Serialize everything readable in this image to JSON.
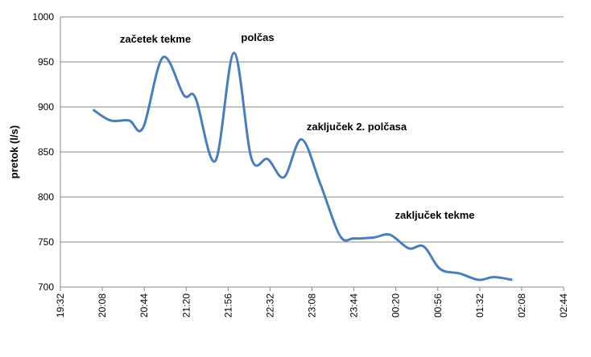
{
  "chart_data": {
    "type": "line",
    "y_label": "pretok  (l/s)",
    "annotations": [
      "začetek tekme",
      "polčas",
      "zaključek 2. polčasa",
      "zaključek tekme"
    ],
    "x": [
      "20:00",
      "20:15",
      "20:31",
      "20:43",
      "21:00",
      "21:18",
      "21:28",
      "21:45",
      "22:01",
      "22:16",
      "22:30",
      "22:44",
      "22:59",
      "23:15",
      "23:32",
      "23:44",
      "00:01",
      "00:15",
      "00:31",
      "00:44",
      "00:58",
      "01:15",
      "01:31",
      "01:44",
      "02:00"
    ],
    "values": [
      897,
      885,
      885,
      877,
      955,
      913,
      910,
      840,
      960,
      843,
      842,
      822,
      864,
      815,
      757,
      754,
      755,
      758,
      743,
      745,
      720,
      715,
      708,
      711,
      708
    ],
    "color": "#4a7ebb",
    "xlim": [
      "19:32",
      "02:44"
    ],
    "xticks": [
      "19:32",
      "20:08",
      "20:44",
      "21:20",
      "21:56",
      "22:32",
      "23:08",
      "23:44",
      "00:20",
      "00:56",
      "01:32",
      "02:08",
      "02:44"
    ],
    "ylim": [
      700,
      1000
    ],
    "yticks": [
      700,
      750,
      800,
      850,
      900,
      950,
      1000
    ],
    "grid": true
  }
}
